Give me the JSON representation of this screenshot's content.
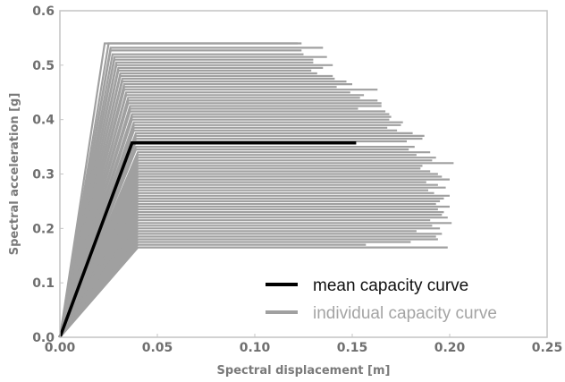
{
  "chart_data": {
    "type": "line",
    "title": "",
    "xlabel": "Spectral displacement [m]",
    "ylabel": "Spectral acceleration [g]",
    "xlim": [
      0.0,
      0.25
    ],
    "ylim": [
      0.0,
      0.6
    ],
    "x_ticks": [
      "0.00",
      "0.05",
      "0.10",
      "0.15",
      "0.20",
      "0.25"
    ],
    "y_ticks": [
      "0.0",
      "0.1",
      "0.2",
      "0.3",
      "0.4",
      "0.5",
      "0.6"
    ],
    "x_tick_values": [
      0.0,
      0.05,
      0.1,
      0.15,
      0.2,
      0.25
    ],
    "y_tick_values": [
      0.0,
      0.1,
      0.2,
      0.3,
      0.4,
      0.5,
      0.6
    ],
    "grid": false,
    "legend_position": "lower-right",
    "colors": {
      "mean": "#000000",
      "individual": "#a0a0a0",
      "frame": "#c4c4c4"
    },
    "series": [
      {
        "name": "mean capacity curve",
        "x": [
          0.0,
          0.037,
          0.152
        ],
        "y": [
          0.0,
          0.357,
          0.357
        ]
      },
      {
        "name": "individual capacity curve",
        "curves": [
          [
            0.023,
            0.54,
            0.122
          ],
          [
            0.025,
            0.54,
            0.124
          ],
          [
            0.026,
            0.532,
            0.135
          ],
          [
            0.026,
            0.527,
            0.124
          ],
          [
            0.027,
            0.52,
            0.125
          ],
          [
            0.028,
            0.515,
            0.137
          ],
          [
            0.028,
            0.51,
            0.13
          ],
          [
            0.029,
            0.505,
            0.13
          ],
          [
            0.029,
            0.5,
            0.14
          ],
          [
            0.03,
            0.495,
            0.135
          ],
          [
            0.03,
            0.49,
            0.129
          ],
          [
            0.031,
            0.485,
            0.132
          ],
          [
            0.031,
            0.48,
            0.14
          ],
          [
            0.032,
            0.475,
            0.141
          ],
          [
            0.032,
            0.47,
            0.147
          ],
          [
            0.033,
            0.465,
            0.15
          ],
          [
            0.033,
            0.46,
            0.142
          ],
          [
            0.033,
            0.455,
            0.163
          ],
          [
            0.034,
            0.45,
            0.149
          ],
          [
            0.034,
            0.445,
            0.156
          ],
          [
            0.035,
            0.44,
            0.154
          ],
          [
            0.035,
            0.435,
            0.163
          ],
          [
            0.035,
            0.43,
            0.165
          ],
          [
            0.036,
            0.425,
            0.165
          ],
          [
            0.036,
            0.42,
            0.153
          ],
          [
            0.036,
            0.415,
            0.167
          ],
          [
            0.037,
            0.41,
            0.169
          ],
          [
            0.037,
            0.405,
            0.17
          ],
          [
            0.037,
            0.4,
            0.169
          ],
          [
            0.038,
            0.395,
            0.176
          ],
          [
            0.038,
            0.39,
            0.175
          ],
          [
            0.038,
            0.385,
            0.168
          ],
          [
            0.038,
            0.38,
            0.173
          ],
          [
            0.039,
            0.375,
            0.181
          ],
          [
            0.039,
            0.37,
            0.187
          ],
          [
            0.039,
            0.365,
            0.186
          ],
          [
            0.039,
            0.36,
            0.178
          ],
          [
            0.039,
            0.35,
            0.182
          ],
          [
            0.039,
            0.345,
            0.179
          ],
          [
            0.04,
            0.34,
            0.19
          ],
          [
            0.04,
            0.335,
            0.183
          ],
          [
            0.04,
            0.33,
            0.193
          ],
          [
            0.04,
            0.325,
            0.191
          ],
          [
            0.04,
            0.32,
            0.202
          ],
          [
            0.04,
            0.315,
            0.186
          ],
          [
            0.04,
            0.31,
            0.185
          ],
          [
            0.04,
            0.305,
            0.19
          ],
          [
            0.04,
            0.3,
            0.194
          ],
          [
            0.04,
            0.295,
            0.196
          ],
          [
            0.04,
            0.29,
            0.2
          ],
          [
            0.04,
            0.285,
            0.188
          ],
          [
            0.04,
            0.28,
            0.194
          ],
          [
            0.04,
            0.275,
            0.198
          ],
          [
            0.04,
            0.27,
            0.189
          ],
          [
            0.04,
            0.265,
            0.192
          ],
          [
            0.04,
            0.26,
            0.2
          ],
          [
            0.04,
            0.255,
            0.197
          ],
          [
            0.04,
            0.25,
            0.195
          ],
          [
            0.04,
            0.245,
            0.193
          ],
          [
            0.04,
            0.24,
            0.2
          ],
          [
            0.04,
            0.235,
            0.194
          ],
          [
            0.04,
            0.23,
            0.197
          ],
          [
            0.04,
            0.225,
            0.196
          ],
          [
            0.04,
            0.22,
            0.199
          ],
          [
            0.04,
            0.215,
            0.19
          ],
          [
            0.04,
            0.21,
            0.201
          ],
          [
            0.04,
            0.205,
            0.191
          ],
          [
            0.04,
            0.2,
            0.195
          ],
          [
            0.04,
            0.195,
            0.183
          ],
          [
            0.04,
            0.19,
            0.196
          ],
          [
            0.04,
            0.185,
            0.193
          ],
          [
            0.04,
            0.18,
            0.194
          ],
          [
            0.04,
            0.175,
            0.18
          ],
          [
            0.04,
            0.17,
            0.157
          ],
          [
            0.04,
            0.165,
            0.199
          ]
        ]
      }
    ]
  }
}
